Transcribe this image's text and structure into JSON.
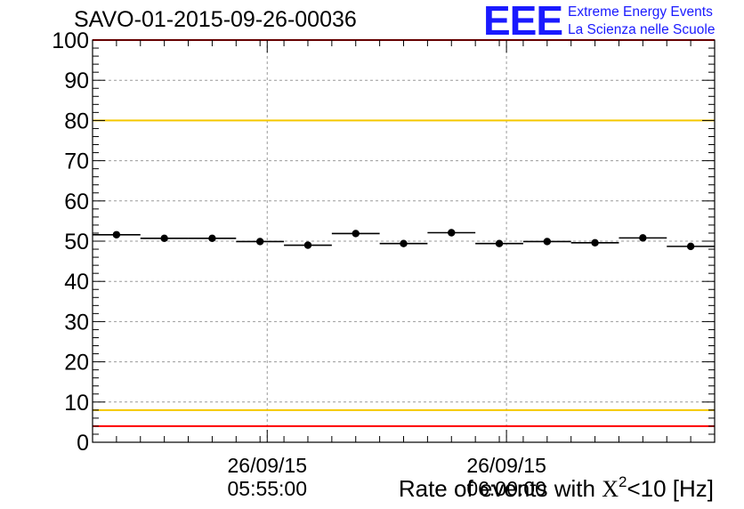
{
  "header": {
    "run_title": "SAVO-01-2015-09-26-00036"
  },
  "logo": {
    "mark": "EEE",
    "line1": "Extreme Energy Events",
    "line2": "La Scienza nelle Scuole"
  },
  "axis_title": {
    "prefix": "Rate of events with ",
    "symbol": "X",
    "exponent": "2",
    "suffix": "<10 [Hz]"
  },
  "chart_data": {
    "type": "scatter",
    "title": "SAVO-01-2015-09-26-00036",
    "xlabel": "Rate of events with X^2<10 [Hz]",
    "ylabel": "",
    "ylim": [
      0,
      100
    ],
    "y_ticks": [
      "0",
      "10",
      "20",
      "30",
      "40",
      "50",
      "60",
      "70",
      "80",
      "90",
      "100"
    ],
    "x_ticks": [
      {
        "index": 7.3,
        "date": "26/09/15",
        "time": "05:55:00"
      },
      {
        "index": 17.3,
        "date": "26/09/15",
        "time": "06:00:00"
      }
    ],
    "grid": true,
    "bin_width": 2,
    "x": [
      1,
      3,
      5,
      7,
      9,
      11,
      13,
      15,
      17,
      19,
      21,
      23,
      25
    ],
    "values": [
      51.6,
      50.7,
      50.7,
      49.9,
      49.0,
      51.9,
      49.4,
      52.1,
      49.4,
      49.9,
      49.6,
      50.8,
      48.7
    ],
    "reference_lines": [
      {
        "y": 100,
        "color": "#ff0000"
      },
      {
        "y": 80,
        "color": "#f5c800"
      },
      {
        "y": 8,
        "color": "#f5c800"
      },
      {
        "y": 4,
        "color": "#ff0000"
      }
    ],
    "marker_color": "#000000",
    "grid_color": "#9a9a9a"
  }
}
